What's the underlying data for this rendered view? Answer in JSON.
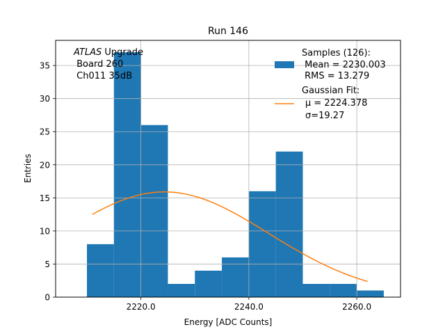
{
  "chart_data": {
    "type": "bar",
    "title": "Run 146",
    "xlabel": "Energy [ADC Counts]",
    "ylabel": "Entries",
    "xlim": [
      2204.2,
      2268.1
    ],
    "ylim": [
      0,
      38.8
    ],
    "grid": true,
    "x_ticks": [
      {
        "value": 2220,
        "label": "2220.0"
      },
      {
        "value": 2240,
        "label": "2240.0"
      },
      {
        "value": 2260,
        "label": "2260.0"
      }
    ],
    "y_ticks": [
      {
        "value": 0,
        "label": "0"
      },
      {
        "value": 5,
        "label": "5"
      },
      {
        "value": 10,
        "label": "10"
      },
      {
        "value": 15,
        "label": "15"
      },
      {
        "value": 20,
        "label": "20"
      },
      {
        "value": 25,
        "label": "25"
      },
      {
        "value": 30,
        "label": "30"
      },
      {
        "value": 35,
        "label": "35"
      }
    ],
    "histogram": {
      "name": "Samples (126):",
      "color": "#1f77b4",
      "bin_edges": [
        2210,
        2215,
        2220,
        2225,
        2230,
        2235,
        2240,
        2245,
        2250,
        2255,
        2260,
        2265
      ],
      "counts": [
        8,
        37,
        26,
        2,
        4,
        6,
        16,
        22,
        2,
        2,
        1
      ]
    },
    "fit": {
      "name": "Gaussian Fit:",
      "color": "#ff7f0e",
      "mu": 2224.378,
      "sigma": 19.27,
      "amplitude": 15.9,
      "x_range": [
        2211,
        2262
      ]
    },
    "legend": {
      "placement": "top-right",
      "entries": [
        {
          "title": "Samples (126):",
          "lines": [
            " Mean = 2230.003",
            " RMS = 13.279"
          ]
        },
        {
          "title": "Gaussian Fit:",
          "lines": [
            "μ = 2224.378",
            "σ=19.27"
          ]
        }
      ]
    },
    "annotation": {
      "italic": "ATLAS",
      "rest": " Upgrade",
      "lines": [
        " Board 260",
        " Ch011 35dB"
      ]
    }
  }
}
